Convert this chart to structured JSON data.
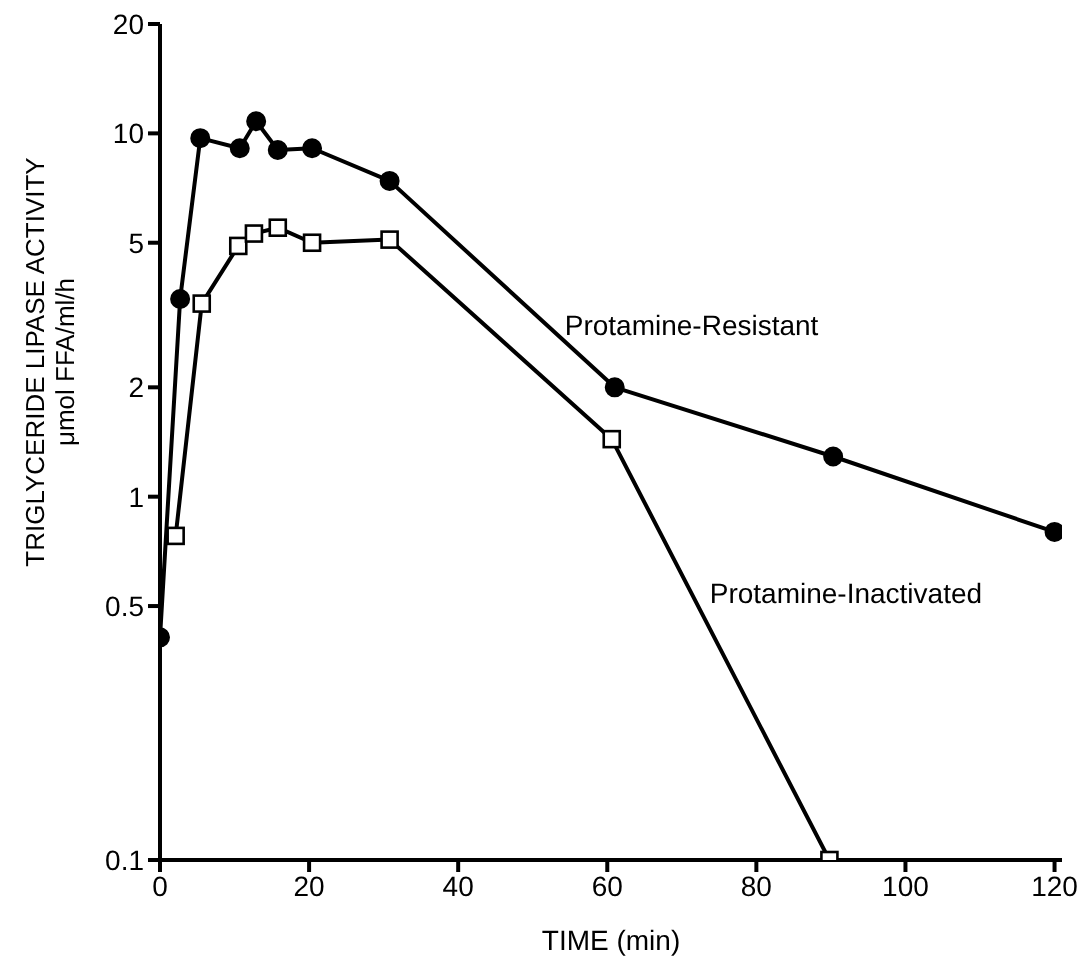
{
  "chart_data": {
    "type": "line",
    "xlabel": "TIME (min)",
    "ylabel": "TRIGLYCERIDE LIPASE ACTIVITY\nμmol FFA/ml/h",
    "log": "y",
    "line_style": "solid",
    "xlim": [
      0,
      121
    ],
    "xticks": [
      0,
      20,
      40,
      60,
      80,
      100,
      120
    ],
    "ylim": [
      0.1,
      20
    ],
    "yticks": [
      0.1,
      0.5,
      1,
      2,
      5,
      10,
      20
    ],
    "series": [
      {
        "name": "Protamine-Resistant",
        "color": "#000000",
        "marker": "circle",
        "x": [
          0,
          2.7,
          5.4,
          10.7,
          12.9,
          15.8,
          20.4,
          30.8,
          61,
          90.3,
          120
        ],
        "values": [
          0.41,
          3.5,
          9.7,
          9.1,
          10.8,
          9.0,
          9.1,
          7.4,
          2.0,
          1.29,
          0.8
        ]
      },
      {
        "name": "Protamine-Inactivated",
        "color": "#000000",
        "marker": "square",
        "x": [
          2.1,
          5.6,
          10.5,
          12.6,
          15.8,
          20.4,
          30.8,
          60.6,
          89.8
        ],
        "values": [
          0.78,
          3.4,
          4.9,
          5.3,
          5.5,
          5.0,
          5.1,
          1.44,
          0.1
        ]
      }
    ]
  }
}
